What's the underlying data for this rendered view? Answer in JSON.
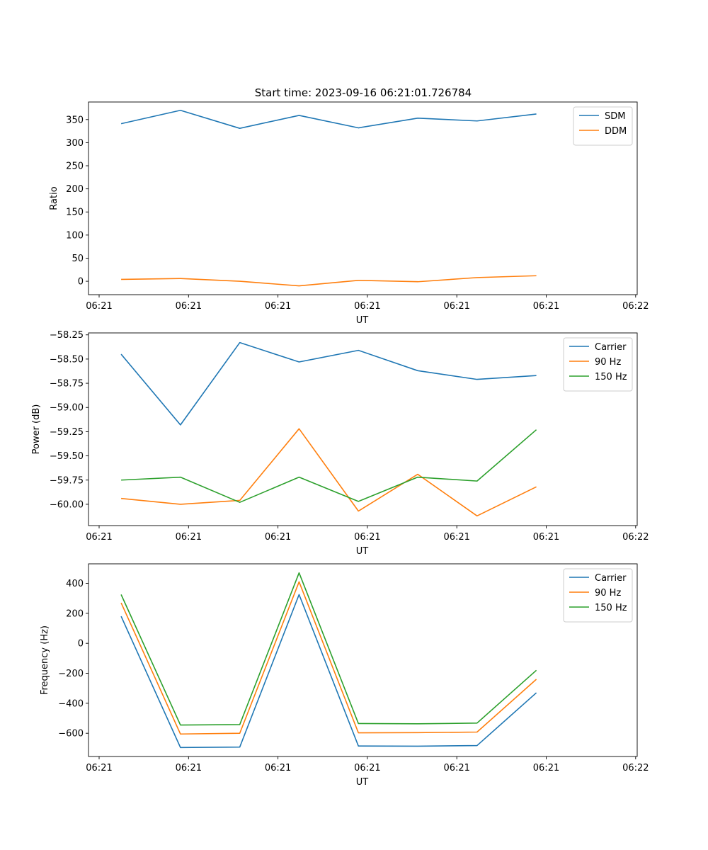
{
  "figure": {
    "title": "Start time: 2023-09-16 06:21:01.726784"
  },
  "chart_data": [
    {
      "type": "line",
      "xlabel": "UT",
      "ylabel": "Ratio",
      "x_ticks": [
        "06:21",
        "06:21",
        "06:21",
        "06:21",
        "06:21",
        "06:21",
        "06:22"
      ],
      "xlim": [
        -0.55,
        8.7
      ],
      "ylim": [
        -29,
        388
      ],
      "y_ticks": [
        0,
        50,
        100,
        150,
        200,
        250,
        300,
        350
      ],
      "y_tick_labels": [
        "0",
        "50",
        "100",
        "150",
        "200",
        "250",
        "300",
        "350"
      ],
      "legend_position": "top-right",
      "series": [
        {
          "name": "SDM",
          "color": "#1f77b4",
          "values": [
            341,
            370,
            331,
            359,
            332,
            353,
            347,
            362
          ]
        },
        {
          "name": "DDM",
          "color": "#ff7f0e",
          "values": [
            4,
            6,
            0,
            -10,
            2,
            -1,
            8,
            12
          ]
        }
      ]
    },
    {
      "type": "line",
      "xlabel": "UT",
      "ylabel": "Power (dB)",
      "x_ticks": [
        "06:21",
        "06:21",
        "06:21",
        "06:21",
        "06:21",
        "06:21",
        "06:22"
      ],
      "xlim": [
        -0.55,
        8.7
      ],
      "ylim": [
        -60.22,
        -58.23
      ],
      "y_ticks": [
        -60.0,
        -59.75,
        -59.5,
        -59.25,
        -59.0,
        -58.75,
        -58.5,
        -58.25
      ],
      "y_tick_labels": [
        "−60.00",
        "−59.75",
        "−59.50",
        "−59.25",
        "−59.00",
        "−58.75",
        "−58.50",
        "−58.25"
      ],
      "legend_position": "top-right",
      "series": [
        {
          "name": "Carrier",
          "color": "#1f77b4",
          "values": [
            -58.45,
            -59.18,
            -58.33,
            -58.53,
            -58.41,
            -58.62,
            -58.71,
            -58.67
          ]
        },
        {
          "name": "90 Hz",
          "color": "#ff7f0e",
          "values": [
            -59.94,
            -60.0,
            -59.96,
            -59.22,
            -60.07,
            -59.69,
            -60.12,
            -59.82
          ]
        },
        {
          "name": "150 Hz",
          "color": "#2ca02c",
          "values": [
            -59.75,
            -59.72,
            -59.98,
            -59.72,
            -59.97,
            -59.72,
            -59.76,
            -59.23
          ]
        }
      ]
    },
    {
      "type": "line",
      "xlabel": "UT",
      "ylabel": "Frequency (Hz)",
      "x_ticks": [
        "06:21",
        "06:21",
        "06:21",
        "06:21",
        "06:21",
        "06:21",
        "06:22"
      ],
      "xlim": [
        -0.55,
        8.7
      ],
      "ylim": [
        -755,
        530
      ],
      "y_ticks": [
        -600,
        -400,
        -200,
        0,
        200,
        400
      ],
      "y_tick_labels": [
        "−600",
        "−400",
        "−200",
        "0",
        "200",
        "400"
      ],
      "legend_position": "top-right",
      "series": [
        {
          "name": "Carrier",
          "color": "#1f77b4",
          "values": [
            180,
            -695,
            -692,
            325,
            -685,
            -686,
            -682,
            -330
          ]
        },
        {
          "name": "90 Hz",
          "color": "#ff7f0e",
          "values": [
            270,
            -605,
            -600,
            410,
            -597,
            -596,
            -592,
            -240
          ]
        },
        {
          "name": "150 Hz",
          "color": "#2ca02c",
          "values": [
            325,
            -545,
            -542,
            470,
            -535,
            -537,
            -532,
            -180
          ]
        }
      ]
    }
  ]
}
